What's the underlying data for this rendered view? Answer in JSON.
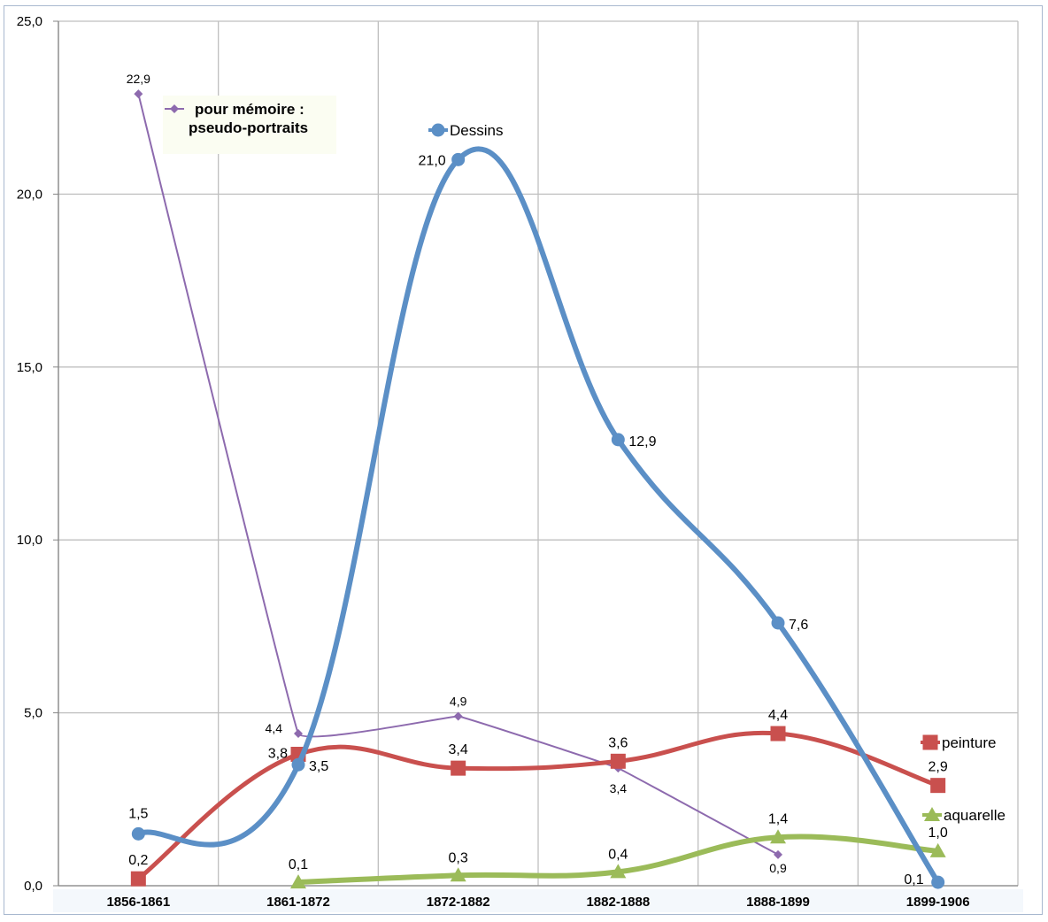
{
  "chart_data": {
    "type": "line",
    "categories": [
      "1856-1861",
      "1861-1872",
      "1872-1882",
      "1882-1888",
      "1888-1899",
      "1899-1906"
    ],
    "ylim": [
      0,
      25
    ],
    "yticks": [
      "0,0",
      "5,0",
      "10,0",
      "15,0",
      "20,0",
      "25,0"
    ],
    "grid": true,
    "series": [
      {
        "name": "Dessins",
        "color": "#5b8fc6",
        "marker": "circle",
        "values": [
          1.5,
          3.5,
          21.0,
          12.9,
          7.6,
          0.1
        ],
        "labels": [
          "1,5",
          "3,5",
          "21,0",
          "12,9",
          "7,6",
          "0,1"
        ]
      },
      {
        "name": "peinture",
        "color": "#c9504e",
        "marker": "square",
        "values": [
          0.2,
          3.8,
          3.4,
          3.6,
          4.4,
          2.9
        ],
        "labels": [
          "0,2",
          "3,8",
          "3,4",
          "3,6",
          "4,4",
          "2,9"
        ]
      },
      {
        "name": "aquarelle",
        "color": "#9bbb59",
        "marker": "triangle",
        "values": [
          null,
          0.1,
          0.3,
          0.4,
          1.4,
          1.0
        ],
        "labels": [
          "",
          "0,1",
          "0,3",
          "0,4",
          "1,4",
          "1,0"
        ]
      },
      {
        "name": "pour mémoire : pseudo-portraits",
        "name_lines": [
          "pour mémoire :",
          "pseudo-portraits"
        ],
        "color": "#8d6aae",
        "marker": "diamond",
        "values": [
          22.9,
          4.4,
          4.9,
          3.4,
          0.9,
          null
        ],
        "labels": [
          "22,9",
          "4,4",
          "4,9",
          "3,4",
          "0,9",
          ""
        ]
      }
    ]
  }
}
